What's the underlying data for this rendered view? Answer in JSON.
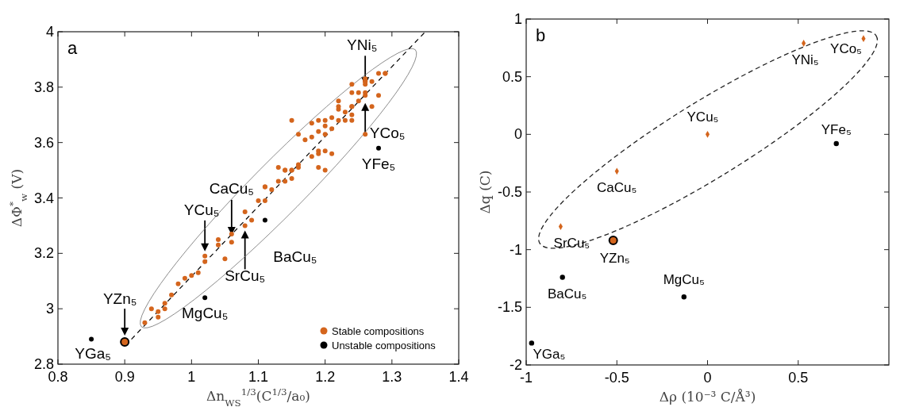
{
  "chart_data": [
    {
      "type": "scatter",
      "xlabel": "Δn$_{WS}$$^{1/3}$(C$^{1/3}$/a₀)",
      "ylabel": "ΔΦ$^{*}$$_{w}$ (V)",
      "xlim": [
        0.8,
        1.4
      ],
      "xticks": [
        0.8,
        0.9,
        1,
        1.1,
        1.2,
        1.3,
        1.4
      ],
      "ylim": [
        2.8,
        4
      ],
      "yticks": [
        2.8,
        3,
        3.2,
        3.4,
        3.6,
        3.8,
        4
      ],
      "grid": false,
      "legend": "bottom right",
      "marker": "circle",
      "series": [
        {
          "type": "line",
          "line_style": "dashed",
          "marker": "none",
          "color": "#000000",
          "x": [
            0.91,
            1.35
          ],
          "values": [
            2.89,
            4.0
          ]
        },
        {
          "name": "Stable compositions",
          "color": "#d4651d",
          "x": [
            0.94,
            0.95,
            0.96,
            0.97,
            0.98,
            0.99,
            1.0,
            1.01,
            1.02,
            1.02,
            1.04,
            1.05,
            1.04,
            1.06,
            1.06,
            1.08,
            1.08,
            1.09,
            1.1,
            1.11,
            1.11,
            1.12,
            1.13,
            1.14,
            1.14,
            1.15,
            1.15,
            1.16,
            1.11,
            1.14,
            1.15,
            1.16,
            1.19,
            1.2,
            1.18,
            1.19,
            1.2,
            1.19,
            1.21,
            1.17,
            1.18,
            1.2,
            1.19,
            1.16,
            1.2,
            1.21,
            1.22,
            1.23,
            1.24,
            1.24,
            1.23,
            1.22,
            1.22,
            1.24,
            1.24,
            1.25,
            1.26,
            1.26,
            1.25,
            1.24,
            1.24,
            1.26,
            1.26,
            1.27,
            1.26,
            1.26,
            1.28,
            1.29,
            1.29,
            1.28,
            1.27,
            1.26,
            1.2,
            1.21,
            1.22,
            1.19,
            1.18,
            1.15,
            1.13,
            0.93,
            0.95,
            0.96
          ],
          "values": [
            3.0,
            2.97,
            3.02,
            3.05,
            3.09,
            3.11,
            3.12,
            3.13,
            3.17,
            3.19,
            3.23,
            3.18,
            3.25,
            3.27,
            3.24,
            3.3,
            3.35,
            3.32,
            3.39,
            3.39,
            3.44,
            3.43,
            3.46,
            3.5,
            3.46,
            3.5,
            3.47,
            3.52,
            3.44,
            3.5,
            3.5,
            3.51,
            3.51,
            3.5,
            3.55,
            3.56,
            3.57,
            3.57,
            3.56,
            3.61,
            3.62,
            3.63,
            3.64,
            3.63,
            3.66,
            3.65,
            3.68,
            3.68,
            3.68,
            3.7,
            3.71,
            3.72,
            3.73,
            3.73,
            3.73,
            3.75,
            3.77,
            3.78,
            3.78,
            3.78,
            3.81,
            3.81,
            3.82,
            3.82,
            3.82,
            3.83,
            3.85,
            3.85,
            3.85,
            3.77,
            3.73,
            3.63,
            3.68,
            3.69,
            3.75,
            3.68,
            3.67,
            3.68,
            3.51,
            2.95,
            2.99,
            3.0
          ]
        },
        {
          "color": "#d4651d",
          "x": [
            0.9
          ],
          "values": [
            2.88
          ]
        },
        {
          "name": "Unstable compositions",
          "color": "#000000",
          "x": [
            0.85,
            1.02,
            1.11,
            1.28
          ],
          "values": [
            2.89,
            3.04,
            3.32,
            3.58
          ]
        }
      ],
      "annotations": [
        "a",
        {
          "text": "YNi₅",
          "x": 1.26,
          "y": 3.79
        },
        {
          "text": "YCo₅",
          "x": 1.26,
          "y": 3.76
        },
        {
          "text": "YFe₅",
          "x": 1.28,
          "y": 3.58
        },
        {
          "text": "CaCu₅",
          "x": 1.06,
          "y": 3.25
        },
        {
          "text": "YCu₅",
          "x": 1.02,
          "y": 3.19
        },
        {
          "text": "SrCu₅",
          "x": 1.08,
          "y": 3.3
        },
        {
          "text": "BaCu₅",
          "x": 1.11,
          "y": 3.32
        },
        {
          "text": "MgCu₅",
          "x": 1.02,
          "y": 3.04
        },
        {
          "text": "YZn₅",
          "x": 0.9,
          "y": 2.88
        },
        {
          "text": "YGa₅",
          "x": 0.85,
          "y": 2.89
        }
      ]
    },
    {
      "type": "scatter",
      "xlabel": "Δρ (10⁻³ C/Å³)",
      "ylabel": "Δq (C)",
      "xlim": [
        -1,
        1
      ],
      "xticks": [
        -1,
        -0.5,
        0,
        0.5
      ],
      "ylim": [
        -2,
        1
      ],
      "yticks": [
        -2,
        -1.5,
        -1,
        -0.5,
        0,
        0.5,
        1
      ],
      "grid": false,
      "series": [
        {
          "color": "#d4651d",
          "marker": "diamond",
          "x": [
            0.53,
            0.86,
            0,
            -0.5,
            -0.81
          ],
          "values": [
            0.79,
            0.83,
            0,
            -0.32,
            -0.8
          ]
        },
        {
          "color": "#d4651d",
          "marker": "circle",
          "x": [
            -0.52
          ],
          "values": [
            -0.92
          ]
        },
        {
          "color": "#000000",
          "marker": "circle",
          "x": [
            0.71,
            -0.8,
            -0.13,
            -0.97
          ],
          "values": [
            -0.08,
            -1.24,
            -1.41,
            -1.81
          ]
        }
      ],
      "annotations": [
        "b",
        {
          "text": "YNi₅",
          "x": 0.53,
          "y": 0.79
        },
        {
          "text": "YCo₅",
          "x": 0.86,
          "y": 0.83
        },
        {
          "text": "YCu₅",
          "x": 0,
          "y": 0
        },
        {
          "text": "YFe₅",
          "x": 0.71,
          "y": -0.08
        },
        {
          "text": "CaCu₅",
          "x": -0.5,
          "y": -0.32
        },
        {
          "text": "SrCu₅",
          "x": -0.81,
          "y": -0.8
        },
        {
          "text": "YZn₅",
          "x": -0.52,
          "y": -0.92
        },
        {
          "text": "BaCu₅",
          "x": -0.8,
          "y": -1.24
        },
        {
          "text": "MgCu₅",
          "x": -0.13,
          "y": -1.41
        },
        {
          "text": "YGa₅",
          "x": -0.97,
          "y": -1.81
        }
      ]
    }
  ]
}
